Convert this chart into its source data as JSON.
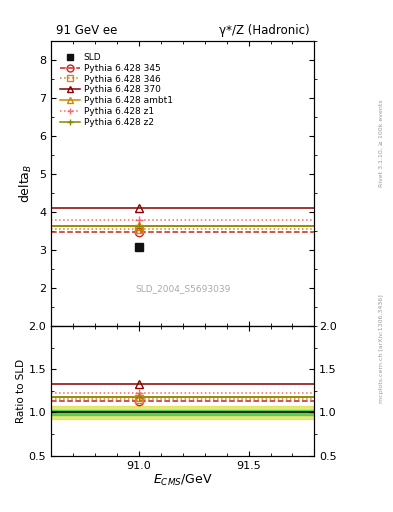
{
  "title_left": "91 GeV ee",
  "title_right": "γ*/Z (Hadronic)",
  "ylabel_main": "delta_B",
  "ylabel_ratio": "Ratio to SLD",
  "xlabel": "E_{CMS}/GeV",
  "watermark": "SLD_2004_S5693039",
  "right_label_top": "Rivet 3.1.10, ≥ 100k events",
  "right_label_bottom": "mcplots.cern.ch [arXiv:1306.3436]",
  "xlim": [
    90.6,
    91.8
  ],
  "ylim_main": [
    1.0,
    8.5
  ],
  "ylim_ratio": [
    0.5,
    2.0
  ],
  "xticks": [
    91.0,
    91.5
  ],
  "data_x": 91.0,
  "sld_value": 3.08,
  "sld_error_green": 0.08,
  "sld_error_yellow": 0.22,
  "lines": [
    {
      "label": "SLD",
      "color": "#111111",
      "value": 3.08,
      "marker": "s",
      "linestyle": "none"
    },
    {
      "label": "Pythia 6.428 345",
      "color": "#cc2222",
      "value": 3.48,
      "marker": "o",
      "linestyle": "dashed"
    },
    {
      "label": "Pythia 6.428 346",
      "color": "#cc8822",
      "value": 3.55,
      "marker": "s",
      "linestyle": "dotted"
    },
    {
      "label": "Pythia 6.428 370",
      "color": "#880000",
      "value": 4.1,
      "marker": "^",
      "linestyle": "solid"
    },
    {
      "label": "Pythia 6.428 ambt1",
      "color": "#cc8800",
      "value": 3.62,
      "marker": "^",
      "linestyle": "solid"
    },
    {
      "label": "Pythia 6.428 z1",
      "color": "#ff6666",
      "value": 3.78,
      "marker": "+",
      "linestyle": "dotted"
    },
    {
      "label": "Pythia 6.428 z2",
      "color": "#888800",
      "value": 3.62,
      "marker": "+",
      "linestyle": "solid"
    }
  ],
  "green_band_half": 0.08,
  "yellow_band_half": 0.22
}
